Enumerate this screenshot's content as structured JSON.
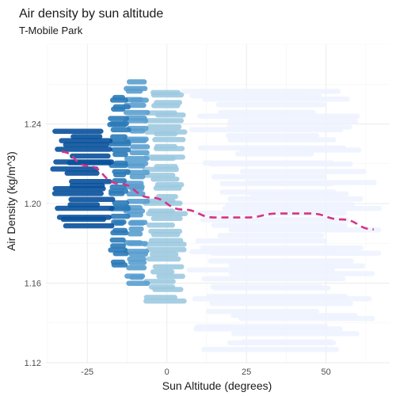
{
  "chart_data": {
    "type": "scatter",
    "title": "Air density by sun altitude",
    "subtitle": "T-Mobile Park",
    "xlabel": "Sun Altitude (degrees)",
    "ylabel": "Air Density (kg/m^3)",
    "xlim": [
      -38,
      70
    ],
    "ylim": [
      1.12,
      1.28
    ],
    "x_ticks": [
      -25,
      0,
      25,
      50
    ],
    "y_ticks": [
      1.12,
      1.16,
      1.2,
      1.24
    ],
    "grid": true,
    "legend": "none",
    "colors": {
      "band_darkest": "#08519c",
      "band_dark": "#2b7bb9",
      "band_mid": "#5a9fd0",
      "band_light": "#9ecae1",
      "band_lightest": "#eff3ff",
      "trend": "#d63384"
    },
    "bands": [
      {
        "x_range": [
          -36,
          -16
        ],
        "color": "#08519c",
        "y_range": [
          1.188,
          1.238
        ]
      },
      {
        "x_range": [
          -18,
          -12
        ],
        "color": "#2b7bb9",
        "y_range": [
          1.168,
          1.255
        ]
      },
      {
        "x_range": [
          -13,
          -6
        ],
        "color": "#5a9fd0",
        "y_range": [
          1.158,
          1.262
        ]
      },
      {
        "x_range": [
          -7,
          6
        ],
        "color": "#9ecae1",
        "y_range": [
          1.15,
          1.258
        ]
      },
      {
        "x_range": [
          5,
          67
        ],
        "color": "#eff3ff",
        "y_range": [
          1.125,
          1.258
        ]
      }
    ],
    "trend_line": {
      "style": "dashed",
      "x": [
        -33,
        -25,
        -15,
        -5,
        5,
        15,
        25,
        35,
        45,
        55,
        65
      ],
      "y": [
        1.226,
        1.219,
        1.21,
        1.203,
        1.197,
        1.193,
        1.193,
        1.195,
        1.195,
        1.192,
        1.187
      ]
    }
  }
}
